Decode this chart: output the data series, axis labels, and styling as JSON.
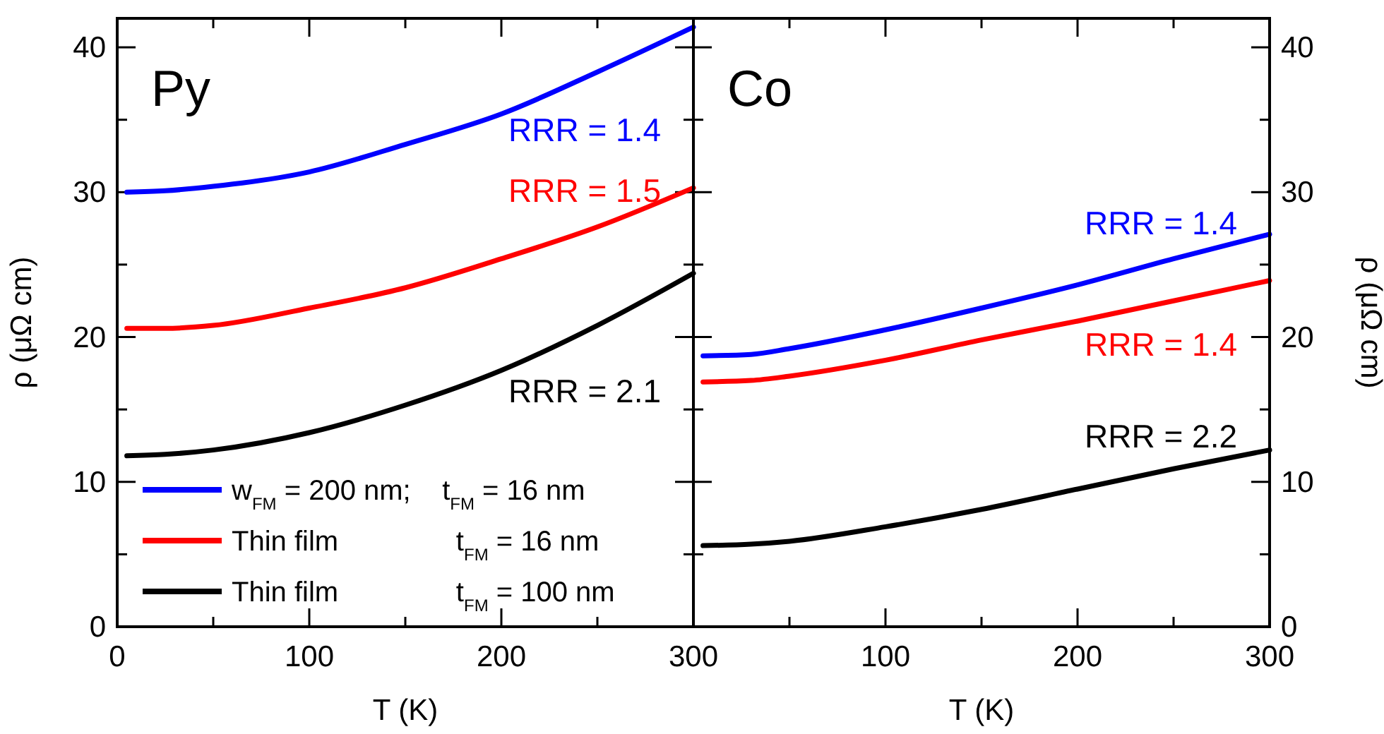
{
  "chart_data": [
    {
      "type": "line",
      "xlabel": "T (K)",
      "ylabel": "ρ (μΩ cm)",
      "xlim": [
        0,
        300
      ],
      "ylim": [
        0,
        42
      ],
      "xticks": [
        0,
        {
          "value": 50,
          "label": null
        },
        100,
        {
          "value": 150,
          "label": null
        },
        200,
        {
          "value": 250,
          "label": null
        },
        300
      ],
      "yticks": [
        0,
        {
          "value": 5,
          "label": null
        },
        10,
        {
          "value": 15,
          "label": null
        },
        20,
        {
          "value": 25,
          "label": null
        },
        30,
        {
          "value": 35,
          "label": null
        },
        40
      ],
      "legend": "bottom left",
      "line_style": "solid",
      "marker": "none",
      "grid": false,
      "x": [
        5,
        25,
        50,
        100,
        150,
        200,
        250,
        300
      ],
      "series": [
        {
          "name": "w$_{FM}$ = 200 nm;    t$_{FM}$ = 16 nm",
          "color": "#0000ff",
          "values": [
            30.0,
            30.1,
            30.4,
            31.4,
            33.3,
            35.4,
            38.3,
            41.4
          ]
        },
        {
          "name": "Thin film               t$_{FM}$ = 16 nm",
          "color": "#ff0000",
          "values": [
            20.6,
            20.6,
            20.8,
            22.0,
            23.4,
            25.4,
            27.6,
            30.3
          ]
        },
        {
          "name": "Thin film               t$_{FM}$ = 100 nm",
          "color": "#000000",
          "values": [
            11.8,
            11.9,
            12.2,
            13.4,
            15.3,
            17.7,
            20.8,
            24.4
          ]
        }
      ],
      "annotations": [
        "Py",
        "RRR = 1.4",
        "RRR = 1.5",
        "RRR = 2.1"
      ]
    },
    {
      "type": "line",
      "xlabel": "T (K)",
      "ylabel": "ρ (μΩ cm)",
      "xlim": [
        0,
        300
      ],
      "ylim": [
        0,
        42
      ],
      "xticks": [
        {
          "value": 0,
          "label": null
        },
        {
          "value": 50,
          "label": null
        },
        100,
        {
          "value": 150,
          "label": null
        },
        200,
        {
          "value": 250,
          "label": null
        },
        300
      ],
      "yticks": [
        0,
        {
          "value": 5,
          "label": null
        },
        10,
        {
          "value": 15,
          "label": null
        },
        20,
        {
          "value": 25,
          "label": null
        },
        30,
        {
          "value": 35,
          "label": null
        },
        40
      ],
      "line_style": "solid",
      "marker": "none",
      "grid": false,
      "x": [
        5,
        30,
        50,
        100,
        150,
        200,
        250,
        300
      ],
      "series": [
        {
          "color": "#0000ff",
          "values": [
            18.7,
            18.8,
            19.2,
            20.5,
            22.0,
            23.6,
            25.4,
            27.1
          ]
        },
        {
          "color": "#ff0000",
          "values": [
            16.9,
            17.0,
            17.3,
            18.4,
            19.8,
            21.1,
            22.5,
            23.9
          ]
        },
        {
          "color": "#000000",
          "values": [
            5.6,
            5.7,
            5.9,
            6.9,
            8.1,
            9.5,
            10.9,
            12.2
          ]
        }
      ],
      "annotations": [
        "Co",
        "RRR = 1.4",
        "RRR = 1.4",
        "RRR = 2.2"
      ]
    }
  ]
}
